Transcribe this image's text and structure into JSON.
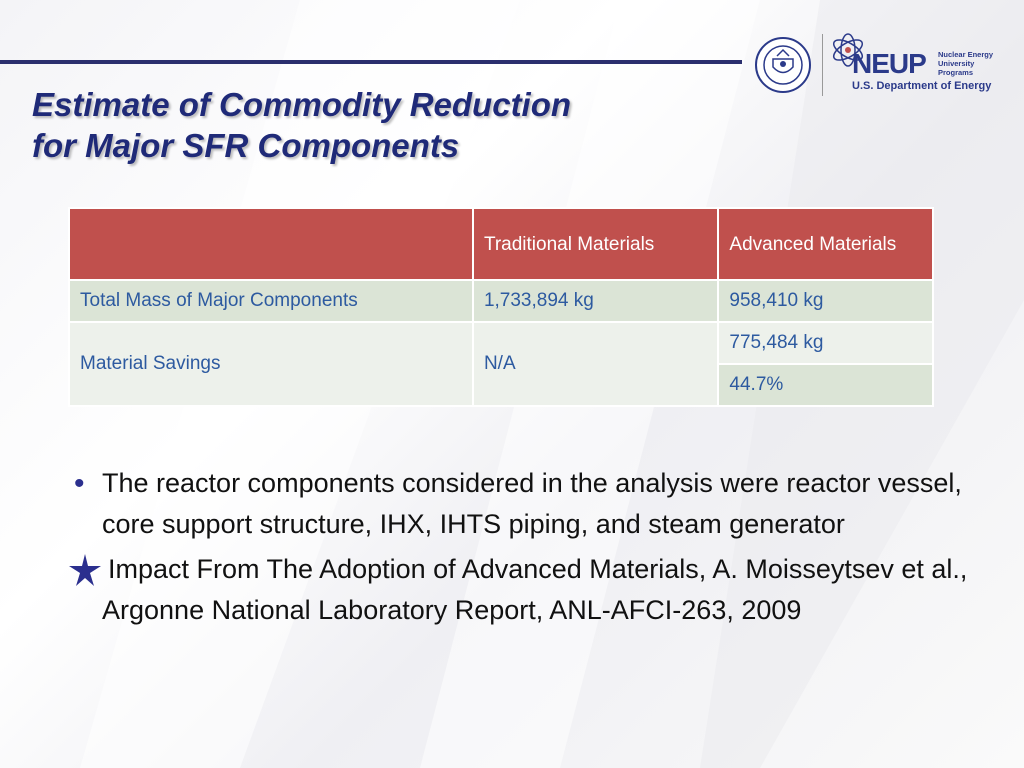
{
  "header": {
    "title_line1": "Estimate of Commodity Reduction",
    "title_line2": "for Major SFR Components"
  },
  "logos": {
    "neup_mark": "NEUP",
    "neup_sub": "Nuclear Energy University Programs",
    "doe_label": "U.S. Department of Energy",
    "seal_name": "department-of-energy-seal"
  },
  "table": {
    "headers": [
      "",
      "Traditional Materials",
      "Advanced Materials"
    ],
    "rows": {
      "total_mass": {
        "label": "Total Mass of Major Components",
        "traditional": "1,733,894 kg",
        "advanced": "958,410 kg"
      },
      "savings": {
        "label": "Material Savings",
        "traditional": "N/A",
        "advanced_mass": "775,484 kg",
        "advanced_pct": "44.7%"
      }
    },
    "colors": {
      "header_bg": "#c0504d",
      "row_dark": "#dbe4d6",
      "row_light": "#edf1eb",
      "text": "#2d5aa0"
    }
  },
  "bullets": {
    "item1": "The reactor components considered in the analysis were reactor vessel, core support structure, IHX, IHTS piping, and steam generator",
    "item2": "Impact From The Adoption of Advanced Materials, A. Moisseytsev et al., Argonne National Laboratory Report, ANL-AFCI-263, 2009",
    "item2_icon": "star-icon"
  },
  "theme": {
    "title_color": "#1f2a78",
    "rule_color": "#2b2f6e"
  }
}
